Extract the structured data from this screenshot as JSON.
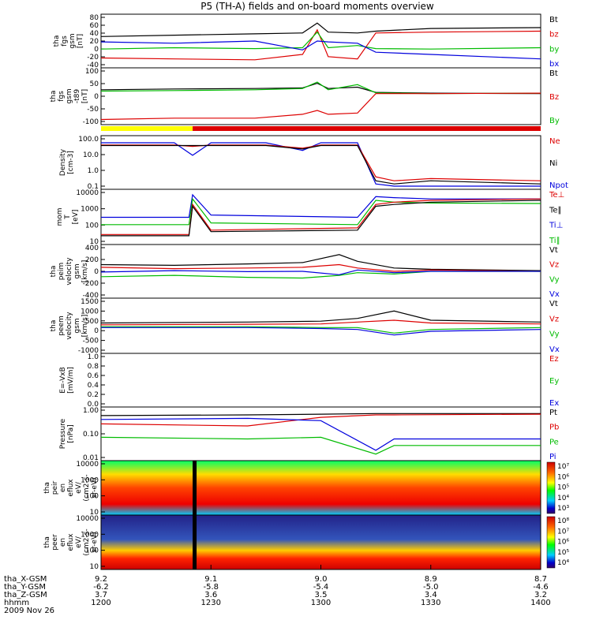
{
  "title": "P5 (TH-A) fields and on-board moments overview",
  "x_axis": {
    "ticks": [
      "1200",
      "1230",
      "1300",
      "1330",
      "1400"
    ],
    "tick_minutes": [
      720,
      750,
      780,
      810,
      840
    ],
    "range_minutes": [
      720,
      840
    ]
  },
  "orbit_table": [
    {
      "label": "tha_X-GSM",
      "values": [
        "9.2",
        "9.1",
        "9.0",
        "8.9",
        "8.7"
      ]
    },
    {
      "label": "tha_Y-GSM",
      "values": [
        "-6.2",
        "-5.8",
        "-5.4",
        "-5.0",
        "-4.6"
      ]
    },
    {
      "label": "tha_Z-GSM",
      "values": [
        "3.7",
        "3.6",
        "3.5",
        "3.4",
        "3.2"
      ]
    },
    {
      "label": "hhmm",
      "values": [
        "1200",
        "1230",
        "1300",
        "1330",
        "1400"
      ]
    }
  ],
  "date": "2009 Nov 26",
  "chart_data": [
    {
      "type": "line",
      "ylabel": [
        "tha",
        "fgs",
        "gsm",
        "[nT]"
      ],
      "yticks": [
        "80",
        "60",
        "40",
        "20",
        "0",
        "-20",
        "-40"
      ],
      "ylim": [
        -40,
        80
      ],
      "legend": [
        {
          "name": "Bt",
          "color": "#000000"
        },
        {
          "name": "bz",
          "color": "#dd0000"
        },
        {
          "name": "by",
          "color": "#00bb00"
        },
        {
          "name": "bx",
          "color": "#0000dd"
        }
      ],
      "series": [
        {
          "name": "Bt",
          "x": [
            720,
            740,
            762,
            775,
            779,
            782,
            790,
            795,
            810,
            840
          ],
          "y": [
            30,
            33,
            36,
            38,
            60,
            40,
            38,
            42,
            48,
            50
          ]
        },
        {
          "name": "bz",
          "x": [
            720,
            740,
            762,
            775,
            779,
            782,
            790,
            795,
            810,
            840
          ],
          "y": [
            -18,
            -20,
            -22,
            -10,
            45,
            -15,
            -20,
            38,
            40,
            42
          ]
        },
        {
          "name": "by",
          "x": [
            720,
            740,
            762,
            775,
            779,
            782,
            790,
            795,
            810,
            840
          ],
          "y": [
            2,
            5,
            3,
            5,
            40,
            5,
            10,
            3,
            2,
            5
          ]
        },
        {
          "name": "bx",
          "x": [
            720,
            740,
            762,
            775,
            779,
            782,
            790,
            795,
            810,
            840
          ],
          "y": [
            18,
            15,
            20,
            0,
            20,
            18,
            15,
            -5,
            -10,
            -20
          ]
        }
      ]
    },
    {
      "type": "line",
      "ylabel": [
        "tha",
        "fgs",
        "gsm",
        "-t89",
        "[nT]"
      ],
      "yticks": [
        "100",
        "50",
        "0",
        "-50",
        "-100"
      ],
      "ylim": [
        -120,
        100
      ],
      "legend": [
        {
          "name": "Bt",
          "color": "#000000"
        },
        {
          "name": "Bz",
          "color": "#dd0000"
        },
        {
          "name": "By",
          "color": "#00bb00"
        }
      ],
      "series": [
        {
          "name": "Bt",
          "x": [
            720,
            740,
            762,
            775,
            779,
            782,
            790,
            795,
            810,
            840
          ],
          "y": [
            15,
            18,
            20,
            22,
            40,
            20,
            25,
            5,
            2,
            0
          ]
        },
        {
          "name": "By",
          "x": [
            720,
            740,
            762,
            775,
            779,
            782,
            790,
            795,
            810,
            840
          ],
          "y": [
            10,
            12,
            15,
            20,
            45,
            15,
            35,
            3,
            0,
            2
          ]
        },
        {
          "name": "Bz",
          "x": [
            720,
            740,
            762,
            775,
            779,
            782,
            790,
            795,
            810,
            840
          ],
          "y": [
            -100,
            -95,
            -95,
            -80,
            -65,
            -80,
            -75,
            0,
            0,
            2
          ]
        }
      ]
    },
    {
      "type": "line",
      "ylog": true,
      "ylabel": [
        "Density",
        "[cm-3]"
      ],
      "yticks": [
        "100.0",
        "10.0",
        "1.0",
        "0.1"
      ],
      "ylim": [
        0.1,
        100
      ],
      "legend": [
        {
          "name": "Ne",
          "color": "#dd0000"
        },
        {
          "name": "Ni",
          "color": "#000000"
        },
        {
          "name": "Npot",
          "color": "#0000dd"
        }
      ],
      "series": [
        {
          "name": "Npot",
          "x": [
            720,
            740,
            745,
            750,
            765,
            775,
            780,
            790,
            795,
            800,
            810,
            840
          ],
          "y": [
            40,
            40,
            8,
            40,
            40,
            15,
            40,
            40,
            0.2,
            0.15,
            0.15,
            0.15
          ]
        },
        {
          "name": "Ne",
          "x": [
            720,
            740,
            745,
            750,
            765,
            775,
            780,
            790,
            795,
            800,
            810,
            840
          ],
          "y": [
            30,
            30,
            25,
            30,
            30,
            20,
            30,
            30,
            0.5,
            0.3,
            0.4,
            0.3
          ]
        },
        {
          "name": "Ni",
          "x": [
            720,
            740,
            745,
            750,
            765,
            775,
            780,
            790,
            795,
            800,
            810,
            840
          ],
          "y": [
            28,
            28,
            28,
            28,
            28,
            18,
            28,
            28,
            0.3,
            0.2,
            0.3,
            0.2
          ]
        }
      ]
    },
    {
      "type": "line",
      "ylog": true,
      "ylabel": [
        "mom",
        "T",
        "[eV]"
      ],
      "yticks": [
        "10000",
        "1000",
        "100",
        "10"
      ],
      "ylim": [
        10,
        10000
      ],
      "legend": [
        {
          "name": "Te⊥",
          "color": "#dd0000"
        },
        {
          "name": "Te∥",
          "color": "#000000"
        },
        {
          "name": "Ti⊥",
          "color": "#0000dd"
        },
        {
          "name": "Ti∥",
          "color": "#00bb00"
        }
      ],
      "series": [
        {
          "name": "Ti⊥",
          "x": [
            720,
            744,
            745,
            750,
            790,
            795,
            800,
            810,
            840
          ],
          "y": [
            300,
            300,
            5000,
            400,
            300,
            4000,
            3500,
            3000,
            3000
          ]
        },
        {
          "name": "Ti∥",
          "x": [
            720,
            744,
            745,
            750,
            790,
            795,
            800,
            810,
            840
          ],
          "y": [
            120,
            120,
            3000,
            150,
            120,
            2500,
            2000,
            1800,
            1700
          ]
        },
        {
          "name": "Te⊥",
          "x": [
            720,
            744,
            745,
            750,
            790,
            795,
            800,
            810,
            840
          ],
          "y": [
            35,
            35,
            1500,
            60,
            80,
            1500,
            2000,
            2500,
            3000
          ]
        },
        {
          "name": "Te∥",
          "x": [
            720,
            744,
            745,
            750,
            790,
            795,
            800,
            810,
            840
          ],
          "y": [
            30,
            30,
            1200,
            50,
            60,
            1200,
            1500,
            2000,
            2500
          ]
        }
      ]
    },
    {
      "type": "line",
      "ylabel": [
        "tha",
        "peim",
        "velocity",
        "gsm",
        "[km/s]"
      ],
      "yticks": [
        "400",
        "200",
        "0",
        "-200",
        "-400"
      ],
      "ylim": [
        -400,
        400
      ],
      "legend": [
        {
          "name": "Vt",
          "color": "#000000"
        },
        {
          "name": "Vz",
          "color": "#dd0000"
        },
        {
          "name": "Vy",
          "color": "#00bb00"
        },
        {
          "name": "Vx",
          "color": "#0000dd"
        }
      ],
      "series": [
        {
          "name": "Vt",
          "x": [
            720,
            740,
            760,
            775,
            785,
            790,
            800,
            810,
            840
          ],
          "y": [
            100,
            90,
            110,
            130,
            250,
            150,
            50,
            30,
            10
          ]
        },
        {
          "name": "Vz",
          "x": [
            720,
            740,
            760,
            775,
            785,
            790,
            800,
            810,
            840
          ],
          "y": [
            60,
            40,
            50,
            60,
            100,
            50,
            0,
            20,
            0
          ]
        },
        {
          "name": "Vy",
          "x": [
            720,
            740,
            760,
            775,
            785,
            790,
            800,
            810,
            840
          ],
          "y": [
            -80,
            -60,
            -90,
            -100,
            -60,
            -20,
            -40,
            0,
            0
          ]
        },
        {
          "name": "Vx",
          "x": [
            720,
            740,
            760,
            775,
            785,
            790,
            800,
            810,
            840
          ],
          "y": [
            -10,
            10,
            -5,
            0,
            -50,
            20,
            -20,
            0,
            0
          ]
        }
      ]
    },
    {
      "type": "line",
      "ylabel": [
        "tha",
        "peem",
        "velocity",
        "gsm",
        "[km/s]"
      ],
      "yticks": [
        "1500",
        "1000",
        "500",
        "0",
        "-500",
        "-1000"
      ],
      "ylim": [
        -1500,
        1500
      ],
      "legend": [
        {
          "name": "Vt",
          "color": "#000000"
        },
        {
          "name": "Vz",
          "color": "#dd0000"
        },
        {
          "name": "Vy",
          "color": "#00bb00"
        },
        {
          "name": "Vx",
          "color": "#0000dd"
        }
      ],
      "series": [
        {
          "name": "Vt",
          "x": [
            720,
            760,
            780,
            790,
            800,
            810,
            840
          ],
          "y": [
            150,
            200,
            250,
            400,
            800,
            300,
            200
          ]
        },
        {
          "name": "Vz",
          "x": [
            720,
            760,
            780,
            790,
            800,
            810,
            840
          ],
          "y": [
            50,
            80,
            100,
            200,
            300,
            150,
            100
          ]
        },
        {
          "name": "Vy",
          "x": [
            720,
            760,
            780,
            790,
            800,
            810,
            840
          ],
          "y": [
            -50,
            -50,
            -100,
            -100,
            -400,
            -200,
            -100
          ]
        },
        {
          "name": "Vx",
          "x": [
            720,
            760,
            780,
            790,
            800,
            810,
            840
          ],
          "y": [
            -100,
            -100,
            -150,
            -200,
            -500,
            -300,
            -200
          ]
        }
      ]
    },
    {
      "type": "line",
      "ylabel": [
        "E=-VxB",
        "[mV/m]"
      ],
      "yticks": [
        "1.0",
        "0.8",
        "0.6",
        "0.4",
        "0.2",
        "0.0"
      ],
      "ylim": [
        0,
        1
      ],
      "legend": [
        {
          "name": "Ez",
          "color": "#dd0000"
        },
        {
          "name": "Ey",
          "color": "#00bb00"
        },
        {
          "name": "Ex",
          "color": "#0000dd"
        }
      ],
      "series": []
    },
    {
      "type": "line",
      "ylog": true,
      "ylabel": [
        "Pressure",
        "[nPa]"
      ],
      "yticks": [
        "1.00",
        "0.10",
        "0.01"
      ],
      "ylim": [
        0.01,
        3
      ],
      "legend": [
        {
          "name": "Pt",
          "color": "#000000"
        },
        {
          "name": "Pb",
          "color": "#dd0000"
        },
        {
          "name": "Pe",
          "color": "#00bb00"
        },
        {
          "name": "Pi",
          "color": "#0000dd"
        }
      ],
      "series": [
        {
          "name": "Pt",
          "x": [
            720,
            760,
            780,
            795,
            800,
            840
          ],
          "y": [
            1.2,
            1.3,
            1.4,
            1.5,
            1.5,
            1.5
          ]
        },
        {
          "name": "Pb",
          "x": [
            720,
            760,
            775,
            780,
            795,
            800,
            840
          ],
          "y": [
            0.5,
            0.4,
            0.8,
            1.0,
            1.3,
            1.3,
            1.4
          ]
        },
        {
          "name": "Pi",
          "x": [
            720,
            760,
            780,
            795,
            800,
            840
          ],
          "y": [
            0.8,
            0.9,
            0.7,
            0.03,
            0.1,
            0.1
          ]
        },
        {
          "name": "Pe",
          "x": [
            720,
            760,
            780,
            795,
            800,
            840
          ],
          "y": [
            0.12,
            0.1,
            0.12,
            0.02,
            0.05,
            0.05
          ]
        }
      ]
    },
    {
      "type": "heatmap",
      "ylabel": [
        "tha",
        "peir",
        "en",
        "eflux",
        "eV/",
        "(cm2-s-",
        "sr-eV)"
      ],
      "yticks": [
        "10000",
        "1000",
        "100",
        "10"
      ],
      "colorbar_ticks": [
        "10⁷",
        "10⁶",
        "10⁵",
        "10⁴",
        "10³"
      ]
    },
    {
      "type": "heatmap",
      "ylabel": [
        "tha",
        "peer",
        "en",
        "eflux",
        "eV/",
        "(cm2-s-",
        "sr-eV)"
      ],
      "yticks": [
        "10000",
        "1000",
        "100",
        "10"
      ],
      "colorbar_ticks": [
        "10⁸",
        "10⁷",
        "10⁶",
        "10⁵",
        "10⁴"
      ]
    }
  ],
  "colors": {
    "black": "#000000",
    "red": "#dd0000",
    "green": "#00bb00",
    "blue": "#0000dd",
    "yellow": "#ffff00"
  }
}
